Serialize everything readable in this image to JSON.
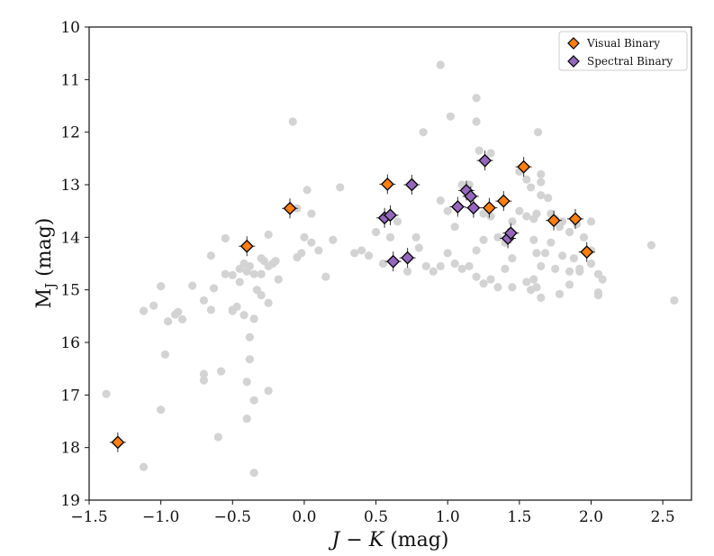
{
  "chart_data": {
    "type": "scatter",
    "title": "",
    "xlabel": "J − K (mag)",
    "ylabel": "M_J (mag)",
    "xlim": [
      -1.5,
      2.7
    ],
    "ylim": [
      19,
      10
    ],
    "y_inverted": true,
    "xticks": [
      -1.5,
      -1.0,
      -0.5,
      0.0,
      0.5,
      1.0,
      1.5,
      2.0,
      2.5
    ],
    "xtick_labels": [
      "−1.5",
      "−1.0",
      "−0.5",
      "0.0",
      "0.5",
      "1.0",
      "1.5",
      "2.0",
      "2.5"
    ],
    "yticks": [
      10,
      11,
      12,
      13,
      14,
      15,
      16,
      17,
      18,
      19
    ],
    "ytick_labels": [
      "10",
      "11",
      "12",
      "13",
      "14",
      "15",
      "16",
      "17",
      "18",
      "19"
    ],
    "legend_position": "top-right",
    "grid": false,
    "series": [
      {
        "name": "Field objects",
        "marker": "circle",
        "color": "#d3d3d3",
        "in_legend": false,
        "points": [
          [
            -1.38,
            16.98
          ],
          [
            -1.12,
            15.4
          ],
          [
            -1.05,
            15.3
          ],
          [
            -1.0,
            14.93
          ],
          [
            -0.9,
            15.47
          ],
          [
            -0.85,
            15.56
          ],
          [
            -0.78,
            14.92
          ],
          [
            -0.88,
            15.42
          ],
          [
            -0.97,
            16.23
          ],
          [
            -1.0,
            17.28
          ],
          [
            -1.12,
            18.37
          ],
          [
            -0.7,
            15.2
          ],
          [
            -0.65,
            15.38
          ],
          [
            -0.63,
            14.97
          ],
          [
            -0.55,
            14.7
          ],
          [
            -0.5,
            14.72
          ],
          [
            -0.5,
            15.38
          ],
          [
            -0.47,
            15.32
          ],
          [
            -0.45,
            14.6
          ],
          [
            -0.42,
            14.5
          ],
          [
            -0.4,
            14.65
          ],
          [
            -0.38,
            14.55
          ],
          [
            -0.35,
            14.7
          ],
          [
            -0.33,
            15.0
          ],
          [
            -0.3,
            14.4
          ],
          [
            -0.28,
            14.45
          ],
          [
            -0.25,
            14.55
          ],
          [
            -0.22,
            14.5
          ],
          [
            -0.2,
            14.45
          ],
          [
            -0.18,
            14.8
          ],
          [
            -0.55,
            14.02
          ],
          [
            -0.65,
            14.35
          ],
          [
            -0.35,
            15.55
          ],
          [
            -0.3,
            15.1
          ],
          [
            -0.25,
            15.25
          ],
          [
            -0.42,
            15.48
          ],
          [
            -0.38,
            15.9
          ],
          [
            -0.3,
            14.7
          ],
          [
            -0.45,
            14.85
          ],
          [
            -0.25,
            13.95
          ],
          [
            -0.05,
            14.38
          ],
          [
            -0.02,
            14.3
          ],
          [
            0.0,
            14.0
          ],
          [
            0.05,
            14.1
          ],
          [
            0.1,
            14.25
          ],
          [
            0.15,
            14.75
          ],
          [
            0.2,
            14.05
          ],
          [
            0.02,
            13.1
          ],
          [
            -0.05,
            13.45
          ],
          [
            0.05,
            13.55
          ],
          [
            0.25,
            13.05
          ],
          [
            -0.08,
            11.8
          ],
          [
            -0.7,
            16.6
          ],
          [
            -0.7,
            16.72
          ],
          [
            -0.58,
            16.55
          ],
          [
            -0.4,
            16.75
          ],
          [
            -0.38,
            16.32
          ],
          [
            -0.35,
            17.1
          ],
          [
            -0.4,
            17.45
          ],
          [
            -0.35,
            18.48
          ],
          [
            -0.6,
            17.8
          ],
          [
            -0.25,
            16.92
          ],
          [
            0.4,
            14.25
          ],
          [
            0.45,
            14.35
          ],
          [
            0.55,
            14.5
          ],
          [
            0.6,
            14.0
          ],
          [
            0.65,
            13.7
          ],
          [
            0.72,
            14.65
          ],
          [
            0.78,
            14.0
          ],
          [
            0.85,
            14.55
          ],
          [
            0.9,
            14.65
          ],
          [
            0.95,
            14.55
          ],
          [
            1.0,
            14.3
          ],
          [
            1.05,
            14.5
          ],
          [
            0.95,
            13.3
          ],
          [
            1.0,
            13.5
          ],
          [
            1.05,
            13.8
          ],
          [
            0.83,
            12.0
          ],
          [
            0.95,
            10.72
          ],
          [
            1.02,
            11.7
          ],
          [
            1.2,
            11.35
          ],
          [
            1.2,
            11.8
          ],
          [
            1.22,
            12.35
          ],
          [
            1.3,
            12.4
          ],
          [
            1.1,
            13.0
          ],
          [
            1.15,
            13.0
          ],
          [
            1.25,
            13.55
          ],
          [
            1.3,
            13.6
          ],
          [
            1.35,
            14.0
          ],
          [
            1.4,
            14.1
          ],
          [
            1.45,
            13.7
          ],
          [
            1.5,
            13.5
          ],
          [
            1.55,
            13.6
          ],
          [
            1.6,
            13.65
          ],
          [
            1.62,
            13.55
          ],
          [
            1.5,
            12.75
          ],
          [
            1.55,
            12.9
          ],
          [
            1.58,
            13.05
          ],
          [
            1.63,
            12.0
          ],
          [
            1.65,
            12.8
          ],
          [
            1.65,
            12.95
          ],
          [
            1.65,
            13.2
          ],
          [
            1.7,
            13.25
          ],
          [
            1.72,
            13.55
          ],
          [
            1.75,
            13.65
          ],
          [
            1.78,
            13.8
          ],
          [
            1.8,
            13.7
          ],
          [
            1.85,
            13.9
          ],
          [
            1.9,
            13.75
          ],
          [
            1.95,
            14.0
          ],
          [
            2.0,
            13.7
          ],
          [
            2.0,
            14.25
          ],
          [
            2.0,
            14.5
          ],
          [
            2.05,
            14.7
          ],
          [
            2.08,
            14.8
          ],
          [
            2.05,
            15.05
          ],
          [
            2.05,
            15.1
          ],
          [
            1.6,
            14.05
          ],
          [
            1.62,
            14.3
          ],
          [
            1.65,
            14.55
          ],
          [
            1.68,
            14.3
          ],
          [
            1.72,
            14.1
          ],
          [
            1.75,
            14.6
          ],
          [
            1.8,
            14.35
          ],
          [
            1.85,
            14.65
          ],
          [
            1.6,
            14.8
          ],
          [
            1.62,
            14.95
          ],
          [
            1.58,
            15.0
          ],
          [
            1.65,
            15.15
          ],
          [
            1.55,
            14.85
          ],
          [
            1.45,
            14.95
          ],
          [
            1.4,
            14.6
          ],
          [
            1.3,
            14.8
          ],
          [
            1.35,
            14.95
          ],
          [
            1.45,
            14.4
          ],
          [
            1.25,
            14.05
          ],
          [
            1.2,
            14.25
          ],
          [
            1.15,
            14.55
          ],
          [
            1.1,
            14.6
          ],
          [
            1.2,
            14.75
          ],
          [
            1.25,
            14.88
          ],
          [
            2.42,
            14.15
          ],
          [
            2.58,
            15.2
          ],
          [
            1.88,
            14.4
          ],
          [
            1.92,
            14.6
          ],
          [
            1.78,
            15.08
          ],
          [
            1.85,
            14.9
          ],
          [
            1.92,
            14.65
          ],
          [
            0.35,
            14.3
          ],
          [
            0.5,
            13.9
          ],
          [
            0.8,
            14.2
          ],
          [
            -0.95,
            15.6
          ],
          [
            -0.5,
            15.4
          ]
        ]
      },
      {
        "name": "Visual Binary",
        "marker": "diamond",
        "color": "#ff7f0e",
        "in_legend": true,
        "points": [
          [
            -1.3,
            17.9
          ],
          [
            -0.4,
            14.17
          ],
          [
            -0.1,
            13.45
          ],
          [
            0.58,
            12.99
          ],
          [
            1.29,
            13.44
          ],
          [
            1.39,
            13.31
          ],
          [
            1.53,
            12.66
          ],
          [
            1.74,
            13.68
          ],
          [
            1.89,
            13.65
          ],
          [
            1.97,
            14.28
          ]
        ]
      },
      {
        "name": "Spectral Binary",
        "marker": "diamond",
        "color": "#9467bd",
        "in_legend": true,
        "points": [
          [
            0.56,
            13.63
          ],
          [
            0.6,
            13.58
          ],
          [
            0.62,
            14.46
          ],
          [
            0.72,
            14.39
          ],
          [
            0.75,
            13.0
          ],
          [
            1.07,
            13.42
          ],
          [
            1.13,
            13.11
          ],
          [
            1.16,
            13.22
          ],
          [
            1.18,
            13.44
          ],
          [
            1.26,
            12.54
          ],
          [
            1.42,
            14.02
          ],
          [
            1.44,
            13.92
          ]
        ]
      }
    ]
  }
}
